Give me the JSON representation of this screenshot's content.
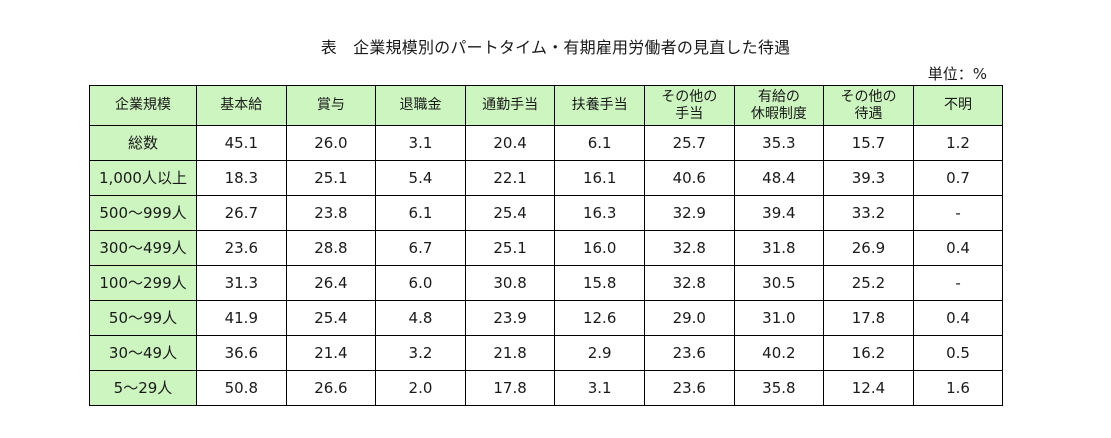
{
  "title": "表　企業規模別のパートタイム・有期雇用労働者の見直した待遇",
  "unit": "単位：%",
  "headers": [
    [
      "企業規模"
    ],
    [
      "基本給"
    ],
    [
      "賞与"
    ],
    [
      "退職金"
    ],
    [
      "通勤手当"
    ],
    [
      "扶養手当"
    ],
    [
      "その他の",
      "手当"
    ],
    [
      "有給の",
      "休暇制度"
    ],
    [
      "その他の",
      "待遇"
    ],
    [
      "不明"
    ]
  ],
  "rows": [
    {
      "label": "総数",
      "values": [
        "45.1",
        "26.0",
        "3.1",
        "20.4",
        "6.1",
        "25.7",
        "35.3",
        "15.7",
        "1.2"
      ]
    },
    {
      "label": "1,000人以上",
      "values": [
        "18.3",
        "25.1",
        "5.4",
        "22.1",
        "16.1",
        "40.6",
        "48.4",
        "39.3",
        "0.7"
      ]
    },
    {
      "label": "500～999人",
      "values": [
        "26.7",
        "23.8",
        "6.1",
        "25.4",
        "16.3",
        "32.9",
        "39.4",
        "33.2",
        "-"
      ]
    },
    {
      "label": "300～499人",
      "values": [
        "23.6",
        "28.8",
        "6.7",
        "25.1",
        "16.0",
        "32.8",
        "31.8",
        "26.9",
        "0.4"
      ]
    },
    {
      "label": "100～299人",
      "values": [
        "31.3",
        "26.4",
        "6.0",
        "30.8",
        "15.8",
        "32.8",
        "30.5",
        "25.2",
        "-"
      ]
    },
    {
      "label": "50～99人",
      "values": [
        "41.9",
        "25.4",
        "4.8",
        "23.9",
        "12.6",
        "29.0",
        "31.0",
        "17.8",
        "0.4"
      ]
    },
    {
      "label": "30～49人",
      "values": [
        "36.6",
        "21.4",
        "3.2",
        "21.8",
        "2.9",
        "23.6",
        "40.2",
        "16.2",
        "0.5"
      ]
    },
    {
      "label": "5～29人",
      "values": [
        "50.8",
        "26.6",
        "2.0",
        "17.8",
        "3.1",
        "23.6",
        "35.8",
        "12.4",
        "1.6"
      ]
    }
  ],
  "colors": {
    "header_fill": "#cdf5c0",
    "border": "#000000"
  }
}
